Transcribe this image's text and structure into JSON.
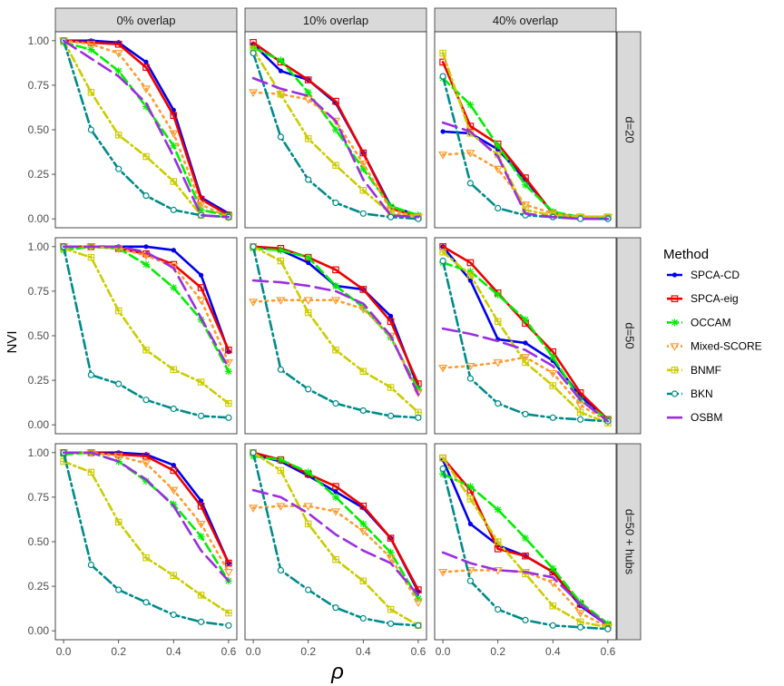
{
  "chart_data": {
    "type": "line",
    "x_label": "ρ",
    "y_label": "NVI",
    "xlim": [
      0.0,
      0.6
    ],
    "ylim": [
      0.0,
      1.0
    ],
    "x_ticks": [
      "0.0",
      "0.2",
      "0.4",
      "0.6"
    ],
    "y_ticks": [
      "0.00",
      "0.25",
      "0.50",
      "0.75",
      "1.00"
    ],
    "column_facets": [
      "0% overlap",
      "10% overlap",
      "40% overlap"
    ],
    "row_facets": [
      "d=20",
      "d=50",
      "d=50 + hubs"
    ],
    "legend_title": "Method",
    "legend_position": "right",
    "methods": [
      {
        "name": "SPCA-CD",
        "color": "#0000ee"
      },
      {
        "name": "SPCA-eig",
        "color": "#ee0000"
      },
      {
        "name": "OCCAM",
        "color": "#00ee00"
      },
      {
        "name": "Mixed-SCORE",
        "color": "#ff9a2e"
      },
      {
        "name": "BNMF",
        "color": "#cccc00"
      },
      {
        "name": "BKN",
        "color": "#008b8b"
      },
      {
        "name": "OSBM",
        "color": "#9b2ee0"
      }
    ],
    "x": [
      0.0,
      0.1,
      0.2,
      0.3,
      0.4,
      0.5,
      0.6
    ],
    "panels": [
      {
        "row": "d=20",
        "col": "0% overlap",
        "series": {
          "SPCA-CD": [
            1.0,
            1.0,
            0.99,
            0.88,
            0.61,
            0.12,
            0.03
          ],
          "SPCA-eig": [
            1.0,
            0.99,
            0.98,
            0.85,
            0.58,
            0.11,
            0.02
          ],
          "OCCAM": [
            0.99,
            0.95,
            0.83,
            0.63,
            0.41,
            0.05,
            0.02
          ],
          "Mixed-SCORE": [
            1.0,
            0.98,
            0.93,
            0.73,
            0.48,
            0.08,
            0.01
          ],
          "BNMF": [
            1.0,
            0.71,
            0.47,
            0.35,
            0.21,
            0.02,
            0.01
          ],
          "BKN": [
            1.0,
            0.5,
            0.28,
            0.13,
            0.05,
            0.02,
            0.01
          ],
          "OSBM": [
            1.0,
            0.9,
            0.8,
            0.65,
            0.35,
            0.02,
            0.01
          ]
        }
      },
      {
        "row": "d=20",
        "col": "10% overlap",
        "series": {
          "SPCA-CD": [
            0.98,
            0.83,
            0.78,
            0.65,
            0.37,
            0.07,
            0.02
          ],
          "SPCA-eig": [
            0.99,
            0.88,
            0.78,
            0.66,
            0.37,
            0.06,
            0.01
          ],
          "OCCAM": [
            0.96,
            0.89,
            0.71,
            0.5,
            0.28,
            0.07,
            0.02
          ],
          "Mixed-SCORE": [
            0.71,
            0.7,
            0.67,
            0.55,
            0.31,
            0.05,
            0.01
          ],
          "BNMF": [
            0.95,
            0.7,
            0.45,
            0.3,
            0.16,
            0.03,
            0.01
          ],
          "BKN": [
            0.93,
            0.46,
            0.22,
            0.09,
            0.03,
            0.01,
            0.0
          ],
          "OSBM": [
            0.79,
            0.73,
            0.69,
            0.55,
            0.22,
            0.02,
            0.01
          ]
        }
      },
      {
        "row": "d=20",
        "col": "40% overlap",
        "series": {
          "SPCA-CD": [
            0.49,
            0.48,
            0.39,
            0.22,
            0.03,
            0.01,
            0.01
          ],
          "SPCA-eig": [
            0.88,
            0.52,
            0.42,
            0.23,
            0.03,
            0.01,
            0.01
          ],
          "OCCAM": [
            0.79,
            0.64,
            0.41,
            0.19,
            0.04,
            0.01,
            0.01
          ],
          "Mixed-SCORE": [
            0.36,
            0.37,
            0.28,
            0.08,
            0.03,
            0.01,
            0.01
          ],
          "BNMF": [
            0.93,
            0.48,
            0.36,
            0.05,
            0.02,
            0.01,
            0.01
          ],
          "BKN": [
            0.8,
            0.2,
            0.06,
            0.02,
            0.01,
            0.0,
            0.0
          ],
          "OSBM": [
            0.54,
            0.49,
            0.35,
            0.03,
            0.01,
            0.0,
            0.0
          ]
        }
      },
      {
        "row": "d=50",
        "col": "0% overlap",
        "series": {
          "SPCA-CD": [
            1.0,
            1.0,
            1.0,
            1.0,
            0.98,
            0.84,
            0.41
          ],
          "SPCA-eig": [
            1.0,
            1.0,
            0.99,
            0.96,
            0.9,
            0.77,
            0.42
          ],
          "OCCAM": [
            0.98,
            1.0,
            0.99,
            0.9,
            0.77,
            0.59,
            0.3
          ],
          "Mixed-SCORE": [
            1.0,
            1.0,
            0.99,
            0.95,
            0.89,
            0.7,
            0.35
          ],
          "BNMF": [
            0.99,
            0.94,
            0.64,
            0.42,
            0.31,
            0.24,
            0.12
          ],
          "BKN": [
            1.0,
            0.28,
            0.23,
            0.14,
            0.09,
            0.05,
            0.04
          ],
          "OSBM": [
            1.0,
            1.0,
            1.0,
            0.97,
            0.88,
            0.6,
            0.32
          ]
        }
      },
      {
        "row": "d=50",
        "col": "10% overlap",
        "series": {
          "SPCA-CD": [
            1.0,
            0.98,
            0.91,
            0.78,
            0.76,
            0.61,
            0.21
          ],
          "SPCA-eig": [
            1.0,
            0.99,
            0.94,
            0.87,
            0.76,
            0.58,
            0.23
          ],
          "OCCAM": [
            0.99,
            0.98,
            0.94,
            0.78,
            0.66,
            0.49,
            0.2
          ],
          "Mixed-SCORE": [
            0.69,
            0.7,
            0.7,
            0.7,
            0.65,
            0.5,
            0.18
          ],
          "BNMF": [
            1.0,
            0.92,
            0.63,
            0.42,
            0.3,
            0.21,
            0.07
          ],
          "BKN": [
            1.0,
            0.31,
            0.2,
            0.12,
            0.08,
            0.05,
            0.04
          ],
          "OSBM": [
            0.81,
            0.8,
            0.78,
            0.75,
            0.68,
            0.5,
            0.17
          ]
        }
      },
      {
        "row": "d=50",
        "col": "40% overlap",
        "series": {
          "SPCA-CD": [
            1.0,
            0.81,
            0.48,
            0.46,
            0.36,
            0.16,
            0.03
          ],
          "SPCA-eig": [
            1.0,
            0.91,
            0.74,
            0.57,
            0.41,
            0.18,
            0.03
          ],
          "OCCAM": [
            0.91,
            0.86,
            0.73,
            0.59,
            0.38,
            0.14,
            0.03
          ],
          "Mixed-SCORE": [
            0.32,
            0.33,
            0.35,
            0.38,
            0.29,
            0.11,
            0.02
          ],
          "BNMF": [
            0.97,
            0.84,
            0.58,
            0.35,
            0.22,
            0.07,
            0.01
          ],
          "BKN": [
            0.92,
            0.26,
            0.12,
            0.06,
            0.04,
            0.03,
            0.02
          ],
          "OSBM": [
            0.54,
            0.51,
            0.47,
            0.42,
            0.33,
            0.14,
            0.02
          ]
        }
      },
      {
        "row": "d=50 + hubs",
        "col": "0% overlap",
        "series": {
          "SPCA-CD": [
            1.0,
            1.0,
            1.0,
            0.99,
            0.93,
            0.73,
            0.38
          ],
          "SPCA-eig": [
            1.0,
            1.0,
            0.99,
            0.98,
            0.9,
            0.7,
            0.38
          ],
          "OCCAM": [
            0.99,
            1.0,
            0.95,
            0.84,
            0.71,
            0.53,
            0.28
          ],
          "Mixed-SCORE": [
            1.0,
            1.0,
            0.98,
            0.94,
            0.79,
            0.6,
            0.33
          ],
          "BNMF": [
            0.95,
            0.89,
            0.61,
            0.41,
            0.31,
            0.2,
            0.1
          ],
          "BKN": [
            1.0,
            0.37,
            0.23,
            0.16,
            0.09,
            0.05,
            0.03
          ],
          "OSBM": [
            1.0,
            1.0,
            0.95,
            0.85,
            0.7,
            0.45,
            0.28
          ]
        }
      },
      {
        "row": "d=50 + hubs",
        "col": "10% overlap",
        "series": {
          "SPCA-CD": [
            0.99,
            0.95,
            0.87,
            0.78,
            0.69,
            0.52,
            0.22
          ],
          "SPCA-eig": [
            1.0,
            0.96,
            0.88,
            0.81,
            0.7,
            0.52,
            0.23
          ],
          "OCCAM": [
            0.98,
            0.96,
            0.89,
            0.75,
            0.6,
            0.44,
            0.18
          ],
          "Mixed-SCORE": [
            0.69,
            0.7,
            0.7,
            0.67,
            0.56,
            0.41,
            0.16
          ],
          "BNMF": [
            1.0,
            0.9,
            0.6,
            0.4,
            0.28,
            0.12,
            0.03
          ],
          "BKN": [
            1.0,
            0.34,
            0.23,
            0.13,
            0.07,
            0.04,
            0.03
          ],
          "OSBM": [
            0.79,
            0.75,
            0.66,
            0.54,
            0.45,
            0.38,
            0.2
          ]
        }
      },
      {
        "row": "d=50 + hubs",
        "col": "40% overlap",
        "series": {
          "SPCA-CD": [
            0.96,
            0.6,
            0.48,
            0.42,
            0.33,
            0.14,
            0.03
          ],
          "SPCA-eig": [
            0.97,
            0.79,
            0.46,
            0.42,
            0.33,
            0.15,
            0.03
          ],
          "OCCAM": [
            0.88,
            0.81,
            0.68,
            0.52,
            0.35,
            0.16,
            0.04
          ],
          "Mixed-SCORE": [
            0.33,
            0.34,
            0.34,
            0.33,
            0.27,
            0.1,
            0.02
          ],
          "BNMF": [
            0.97,
            0.74,
            0.5,
            0.32,
            0.14,
            0.05,
            0.02
          ],
          "BKN": [
            0.91,
            0.28,
            0.12,
            0.06,
            0.03,
            0.02,
            0.01
          ],
          "OSBM": [
            0.44,
            0.38,
            0.34,
            0.33,
            0.3,
            0.15,
            0.03
          ]
        }
      }
    ]
  }
}
